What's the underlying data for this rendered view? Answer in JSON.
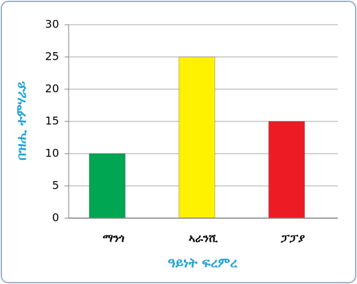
{
  "chart_data": {
    "type": "bar",
    "categories": [
      "ማንጎ",
      "ኣራንሺ",
      "ፓፓያ"
    ],
    "values": [
      10,
      25,
      15
    ],
    "colors": [
      "#00a651",
      "#fff200",
      "#ed1c24"
    ],
    "x_label": "ዓይነት ፍረምረ",
    "y_label": "በዝሒ ተምሃራይ",
    "ylim": [
      0,
      30
    ],
    "yticks": [
      0,
      5,
      10,
      15,
      20,
      25,
      30
    ],
    "grid": true
  }
}
